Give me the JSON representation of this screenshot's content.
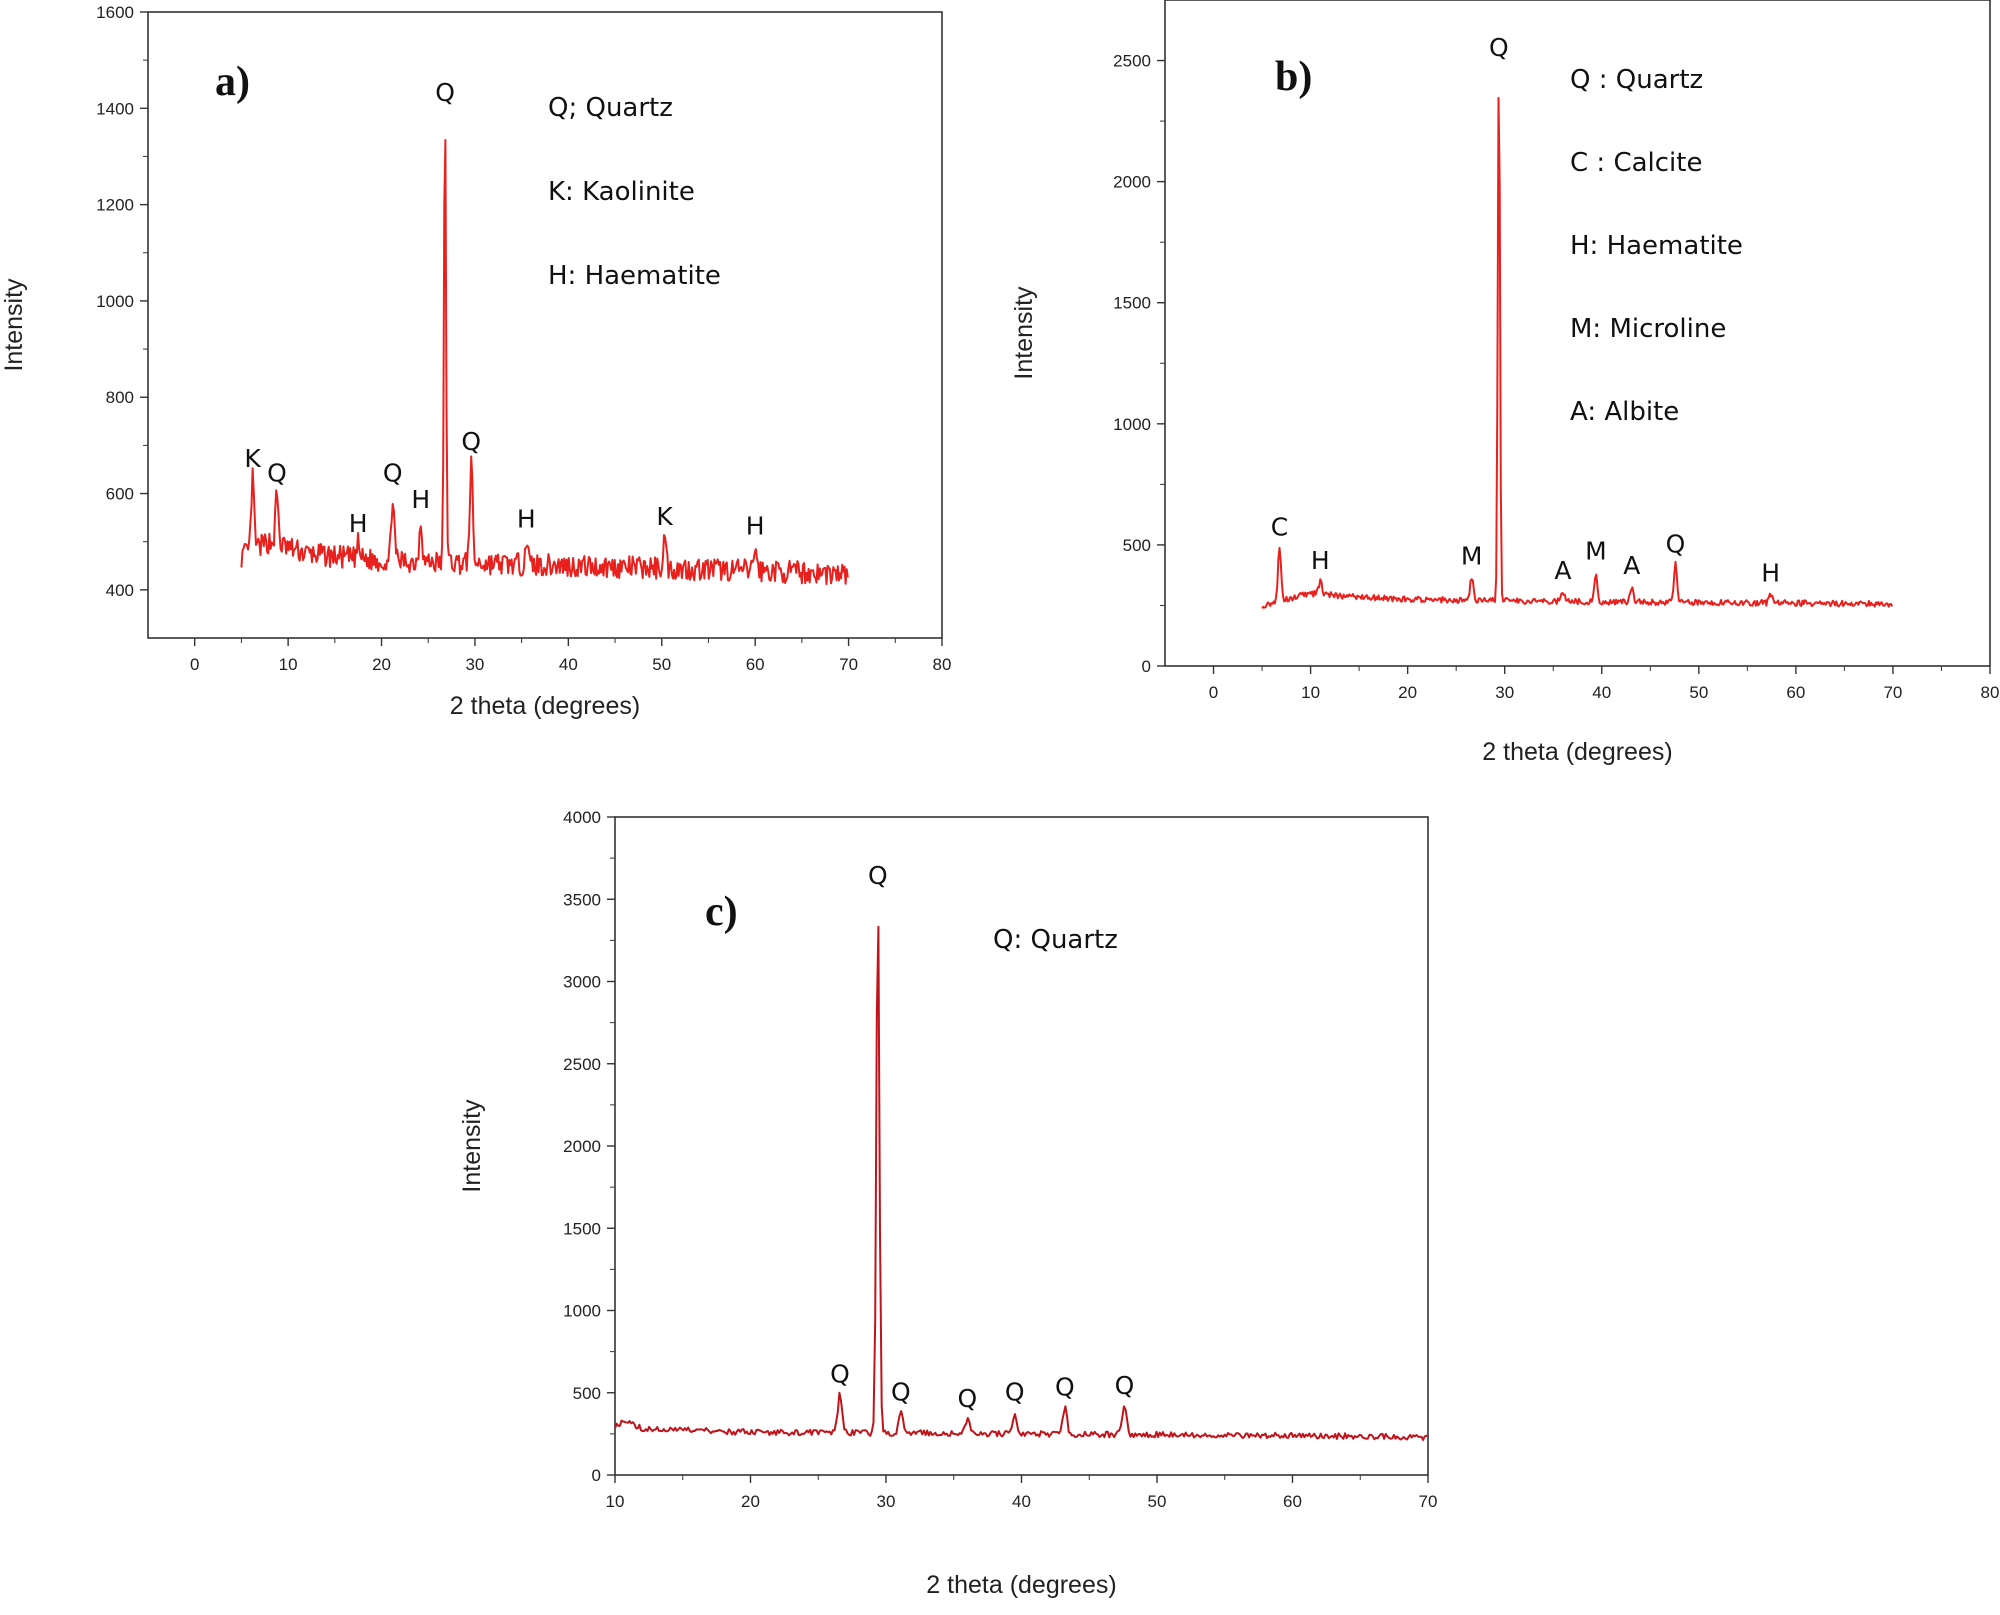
{
  "chart_data": [
    {
      "type": "line",
      "panel_label": "a)",
      "xlabel": "2 theta (degrees)",
      "ylabel": "Intensity",
      "xlim": [
        -5,
        80
      ],
      "ylim": [
        300,
        1600
      ],
      "xticks": [
        0,
        10,
        20,
        30,
        40,
        50,
        60,
        70,
        80
      ],
      "yticks": [
        400,
        600,
        800,
        1000,
        1200,
        1400,
        1600
      ],
      "line_color": "#e8201e",
      "legend": [
        "Q; Quartz",
        "K: Kaolinite",
        "H: Haematite"
      ],
      "baseline": {
        "x": [
          5,
          8,
          12,
          20,
          30,
          40,
          50,
          60,
          70
        ],
        "y": [
          470,
          500,
          475,
          460,
          455,
          450,
          445,
          440,
          432
        ]
      },
      "peaks": [
        {
          "x": 6.2,
          "y": 630,
          "label": "K"
        },
        {
          "x": 8.8,
          "y": 600,
          "label": "Q"
        },
        {
          "x": 17.5,
          "y": 495,
          "label": "H"
        },
        {
          "x": 21.2,
          "y": 600,
          "label": "Q"
        },
        {
          "x": 24.2,
          "y": 545,
          "label": "H"
        },
        {
          "x": 26.8,
          "y": 1390,
          "label": "Q"
        },
        {
          "x": 29.6,
          "y": 665,
          "label": "Q"
        },
        {
          "x": 35.5,
          "y": 505,
          "label": "H"
        },
        {
          "x": 50.3,
          "y": 510,
          "label": "K"
        },
        {
          "x": 60.0,
          "y": 490,
          "label": "H"
        }
      ]
    },
    {
      "type": "line",
      "panel_label": "b)",
      "xlabel": "2 theta (degrees)",
      "ylabel": "Intensity",
      "xlim": [
        -5,
        80
      ],
      "ylim": [
        0,
        2750
      ],
      "xticks": [
        0,
        10,
        20,
        30,
        40,
        50,
        60,
        70,
        80
      ],
      "yticks": [
        0,
        500,
        1000,
        1500,
        2000,
        2500
      ],
      "line_color": "#e8201e",
      "legend": [
        "Q : Quartz",
        "C : Calcite",
        "H:  Haematite",
        "M: Microline",
        "A:  Albite"
      ],
      "baseline": {
        "x": [
          5,
          10,
          15,
          20,
          30,
          40,
          50,
          60,
          70
        ],
        "y": [
          250,
          300,
          285,
          275,
          270,
          265,
          262,
          260,
          255
        ]
      },
      "peaks": [
        {
          "x": 6.8,
          "y": 490,
          "label": "C"
        },
        {
          "x": 11.0,
          "y": 350,
          "label": "H"
        },
        {
          "x": 26.6,
          "y": 370,
          "label": "M"
        },
        {
          "x": 29.4,
          "y": 2470,
          "label": "Q"
        },
        {
          "x": 36.0,
          "y": 310,
          "label": "A"
        },
        {
          "x": 39.4,
          "y": 390,
          "label": "M"
        },
        {
          "x": 43.1,
          "y": 330,
          "label": "A"
        },
        {
          "x": 47.6,
          "y": 420,
          "label": "Q"
        },
        {
          "x": 57.4,
          "y": 300,
          "label": "H"
        }
      ]
    },
    {
      "type": "line",
      "panel_label": "c)",
      "xlabel": "2 theta (degrees)",
      "ylabel": "Intensity",
      "xlim": [
        10,
        70
      ],
      "ylim": [
        0,
        4000
      ],
      "xticks": [
        10,
        20,
        30,
        40,
        50,
        60,
        70
      ],
      "yticks": [
        0,
        500,
        1000,
        1500,
        2000,
        2500,
        3000,
        3500,
        4000
      ],
      "line_color": "#c0141b",
      "legend": [
        "Q: Quartz"
      ],
      "baseline": {
        "x": [
          10,
          11,
          12,
          20,
          30,
          40,
          50,
          60,
          70
        ],
        "y": [
          300,
          330,
          280,
          260,
          255,
          250,
          245,
          240,
          230
        ]
      },
      "peaks": [
        {
          "x": 26.6,
          "y": 490,
          "label": "Q"
        },
        {
          "x": 29.4,
          "y": 3520,
          "label": "Q"
        },
        {
          "x": 31.1,
          "y": 380,
          "label": "Q"
        },
        {
          "x": 36.0,
          "y": 340,
          "label": "Q"
        },
        {
          "x": 39.5,
          "y": 380,
          "label": "Q"
        },
        {
          "x": 43.2,
          "y": 410,
          "label": "Q"
        },
        {
          "x": 47.6,
          "y": 420,
          "label": "Q"
        }
      ]
    }
  ]
}
